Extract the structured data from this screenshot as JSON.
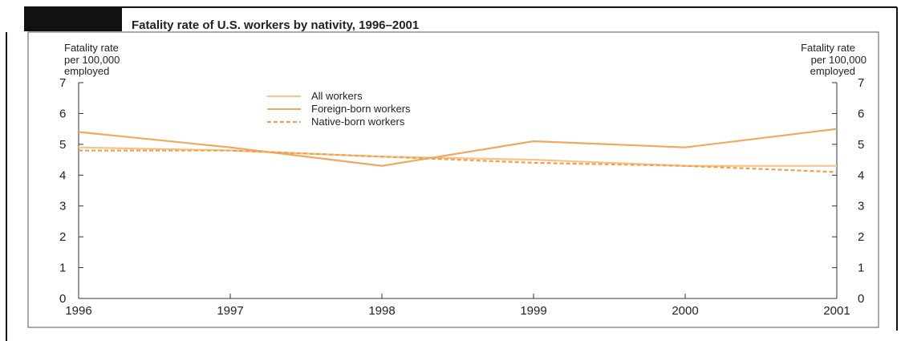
{
  "chart_data": {
    "type": "line",
    "title": "Fatality rate of U.S. workers by nativity, 1996–2001",
    "ylabel_left": [
      "Fatality rate",
      "per 100,000",
      "employed"
    ],
    "ylabel_right": [
      "Fatality rate",
      "per 100,000",
      "employed"
    ],
    "x": [
      "1996",
      "1997",
      "1998",
      "1999",
      "2000",
      "2001"
    ],
    "ylim": [
      0,
      7
    ],
    "yticks": [
      0,
      1,
      2,
      3,
      4,
      5,
      6,
      7
    ],
    "grid": false,
    "legend_position": "top-center",
    "series": [
      {
        "name": "All workers",
        "values": [
          4.9,
          4.8,
          4.6,
          4.5,
          4.3,
          4.3
        ],
        "style": "solid",
        "color": "#f5c28a"
      },
      {
        "name": "Foreign-born workers",
        "values": [
          5.4,
          4.9,
          4.3,
          5.1,
          4.9,
          5.5
        ],
        "style": "solid",
        "color": "#f0a860"
      },
      {
        "name": "Native-born workers",
        "values": [
          4.8,
          4.8,
          4.6,
          4.4,
          4.3,
          4.1
        ],
        "style": "dashed",
        "color": "#f4a04a"
      }
    ]
  }
}
